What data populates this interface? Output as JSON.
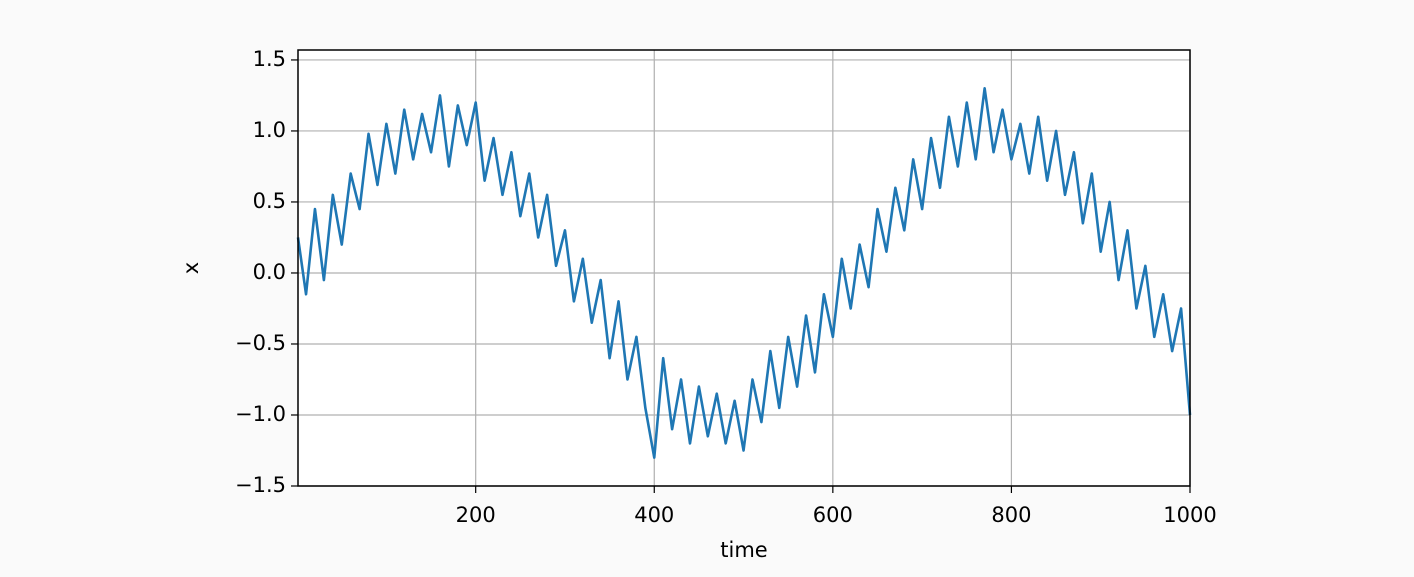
{
  "chart_data": {
    "type": "line",
    "xlabel": "time",
    "ylabel": "x",
    "x": [
      1,
      10,
      20,
      30,
      40,
      50,
      60,
      70,
      80,
      90,
      100,
      110,
      120,
      130,
      140,
      150,
      160,
      170,
      180,
      190,
      200,
      210,
      220,
      230,
      240,
      250,
      260,
      270,
      280,
      290,
      300,
      310,
      320,
      330,
      340,
      350,
      360,
      370,
      380,
      390,
      400,
      410,
      420,
      430,
      440,
      450,
      460,
      470,
      480,
      490,
      500,
      510,
      520,
      530,
      540,
      550,
      560,
      570,
      580,
      590,
      600,
      610,
      620,
      630,
      640,
      650,
      660,
      670,
      680,
      690,
      700,
      710,
      720,
      730,
      740,
      750,
      760,
      770,
      780,
      790,
      800,
      810,
      820,
      830,
      840,
      850,
      860,
      870,
      880,
      890,
      900,
      910,
      920,
      930,
      940,
      950,
      960,
      970,
      980,
      990,
      1000
    ],
    "values": [
      0.25,
      -0.15,
      0.45,
      -0.05,
      0.55,
      0.2,
      0.7,
      0.45,
      0.98,
      0.62,
      1.05,
      0.7,
      1.15,
      0.8,
      1.12,
      0.85,
      1.25,
      0.75,
      1.18,
      0.9,
      1.2,
      0.65,
      0.95,
      0.55,
      0.85,
      0.4,
      0.7,
      0.25,
      0.55,
      0.05,
      0.3,
      -0.2,
      0.1,
      -0.35,
      -0.05,
      -0.6,
      -0.2,
      -0.75,
      -0.45,
      -0.95,
      -1.3,
      -0.6,
      -1.1,
      -0.75,
      -1.2,
      -0.8,
      -1.15,
      -0.85,
      -1.2,
      -0.9,
      -1.25,
      -0.75,
      -1.05,
      -0.55,
      -0.95,
      -0.45,
      -0.8,
      -0.3,
      -0.7,
      -0.15,
      -0.45,
      0.1,
      -0.25,
      0.2,
      -0.1,
      0.45,
      0.15,
      0.6,
      0.3,
      0.8,
      0.45,
      0.95,
      0.6,
      1.1,
      0.75,
      1.2,
      0.8,
      1.3,
      0.85,
      1.15,
      0.8,
      1.05,
      0.7,
      1.1,
      0.65,
      1.0,
      0.55,
      0.85,
      0.35,
      0.7,
      0.15,
      0.5,
      -0.05,
      0.3,
      -0.25,
      0.05,
      -0.45,
      -0.15,
      -0.55,
      -0.25,
      -1.0
    ],
    "color": "#1f77b4",
    "xlim": [
      1,
      1000
    ],
    "xticks": [
      200,
      400,
      600,
      800,
      1000
    ],
    "ylim": [
      -1.5,
      1.57
    ],
    "yticks": [
      {
        "value": -1.5,
        "label": "−1.5"
      },
      {
        "value": -1.0,
        "label": "−1.0"
      },
      {
        "value": -0.5,
        "label": "−0.5"
      },
      {
        "value": 0,
        "label": "0.0"
      },
      0.5,
      {
        "value": 1.0,
        "label": "1.0"
      },
      1.5
    ],
    "grid": true
  }
}
